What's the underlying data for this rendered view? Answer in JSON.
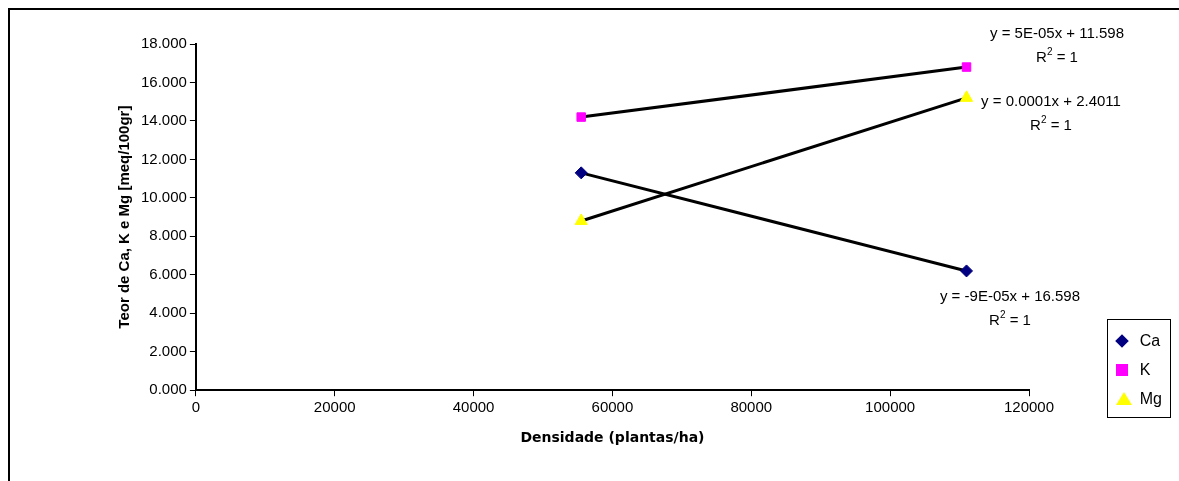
{
  "chart_data": {
    "type": "scatter",
    "xlabel": "Densidade (plantas/ha)",
    "ylabel": "Teor de Ca, K e Mg [meq/100gr]",
    "xlim": [
      0,
      120000
    ],
    "xticks": [
      0,
      20000,
      40000,
      60000,
      80000,
      100000,
      120000
    ],
    "ylim": [
      0,
      18
    ],
    "yticks": [
      {
        "value": 0,
        "label": "0.000"
      },
      {
        "value": 2,
        "label": "2.000"
      },
      {
        "value": 4,
        "label": "4.000"
      },
      {
        "value": 6,
        "label": "6.000"
      },
      {
        "value": 8,
        "label": "8.000"
      },
      {
        "value": 10,
        "label": "10.000"
      },
      {
        "value": 12,
        "label": "12.000"
      },
      {
        "value": 14,
        "label": "14.000"
      },
      {
        "value": 16,
        "label": "16.000"
      },
      {
        "value": 18,
        "label": "18.000"
      }
    ],
    "grid": false,
    "legend": "bottom right",
    "x": [
      55500,
      111000
    ],
    "series": [
      {
        "name": "Ca",
        "color": "#000080",
        "marker": "diamond",
        "values": [
          11.3,
          6.2
        ]
      },
      {
        "name": "K",
        "color": "#ff00ff",
        "marker": "square",
        "values": [
          14.2,
          16.8
        ]
      },
      {
        "name": "Mg",
        "color": "#ffff00",
        "marker": "triangle",
        "values": [
          8.8,
          15.2
        ]
      },
      {
        "type": "line",
        "color": "#000000",
        "marker": "none",
        "values": [
          11.3,
          6.2
        ]
      },
      {
        "type": "line",
        "color": "#000000",
        "marker": "none",
        "values": [
          14.2,
          16.8
        ]
      },
      {
        "type": "line",
        "color": "#000000",
        "marker": "none",
        "values": [
          8.8,
          15.2
        ]
      }
    ],
    "annotations": [
      "y = -9E-05x + 16.598\nR$^{2}$ = 1",
      "y = 5E-05x + 11.598\nR$^{2}$ = 1",
      "y = 0.0001x + 2.4011\nR$^{2}$ = 1"
    ]
  }
}
